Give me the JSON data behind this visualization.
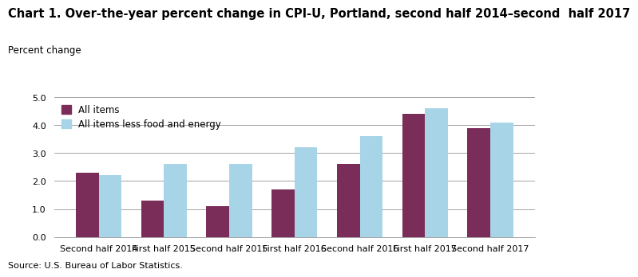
{
  "title": "Chart 1. Over-the-year percent change in CPI-U, Portland, second half 2014–second  half 2017",
  "ylabel": "Percent change",
  "source": "Source: U.S. Bureau of Labor Statistics.",
  "categories": [
    "Second half 2014",
    "First half 2015",
    "Second half 2015",
    "First half 2016",
    "Second half 2016",
    "First half 2017",
    "Second half 2017"
  ],
  "all_items": [
    2.3,
    1.3,
    1.1,
    1.7,
    2.6,
    4.4,
    3.9
  ],
  "all_items_less": [
    2.2,
    2.6,
    2.6,
    3.2,
    3.6,
    4.6,
    4.1
  ],
  "color_all_items": "#7B2D5A",
  "color_less": "#A8D4E8",
  "ylim": [
    0.0,
    5.0
  ],
  "yticks": [
    0.0,
    1.0,
    2.0,
    3.0,
    4.0,
    5.0
  ],
  "legend_all_items": "All items",
  "legend_less": "All items less food and energy",
  "bar_width": 0.35,
  "title_fontsize": 10.5,
  "label_fontsize": 8.5,
  "tick_fontsize": 8,
  "source_fontsize": 8
}
